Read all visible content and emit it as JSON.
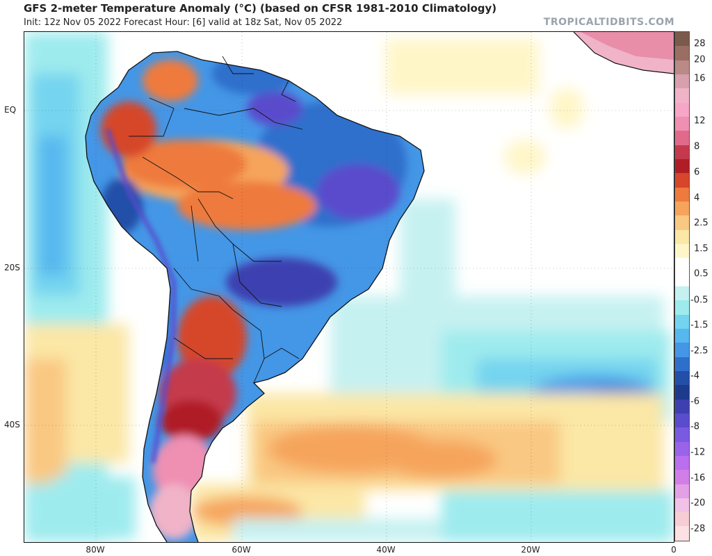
{
  "header": {
    "title": "GFS 2-meter Temperature Anomaly (°C) (based on CFSR 1981-2010 Climatology)",
    "subtitle": "Init: 12z Nov 05 2022   Forecast Hour: [6]   valid at 18z Sat, Nov 05 2022",
    "watermark": "TROPICALTIDBITS.COM"
  },
  "axes": {
    "lat_labels": [
      "EQ",
      "20S",
      "40S"
    ],
    "lon_labels": [
      "80W",
      "60W",
      "40W",
      "20W",
      "0"
    ]
  },
  "colorbar": {
    "labels": [
      "28",
      "20",
      "16",
      "12",
      "8",
      "6",
      "4",
      "2.5",
      "1.5",
      "0.5",
      "-0.5",
      "-1.5",
      "-2.5",
      "-4",
      "-6",
      "-8",
      "-12",
      "-16",
      "-20",
      "-28"
    ],
    "colors": [
      "#7a5a4a",
      "#9a6e62",
      "#b98a86",
      "#d7a0ac",
      "#f0b3c8",
      "#f6a6c6",
      "#ef8fb2",
      "#e06a8a",
      "#c43a4c",
      "#b01d26",
      "#d6462a",
      "#ee7a3e",
      "#f6a45c",
      "#f9c882",
      "#fbe7a6",
      "#fff6c8",
      "#ffffff",
      "#ffffff",
      "#c6f1f1",
      "#9eebee",
      "#74d4ef",
      "#56b8ef",
      "#4496e6",
      "#2f6fcc",
      "#224fa8",
      "#1d3a8c",
      "#3e3fb0",
      "#5a4ccc",
      "#7a5ae0",
      "#9a64ea",
      "#bb6eee",
      "#d27ee8",
      "#e4a0e6",
      "#f0c2e8",
      "#f7cdd4",
      "#fbe0e4"
    ]
  }
}
